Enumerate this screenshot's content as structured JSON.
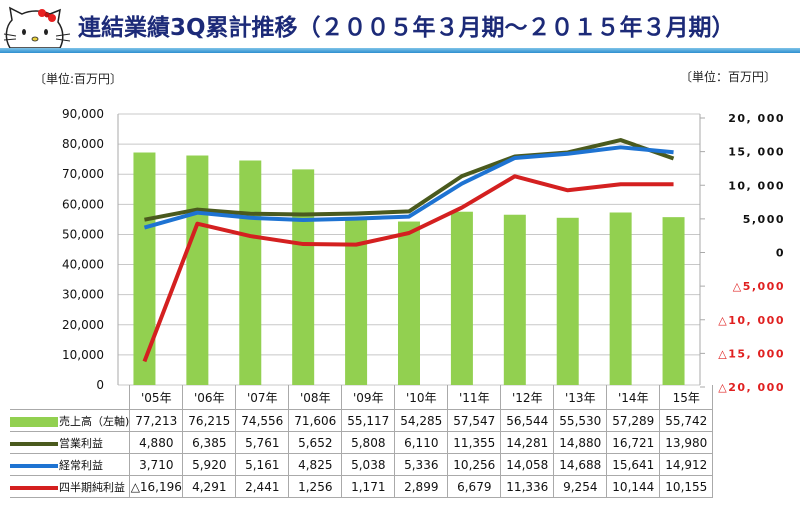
{
  "title": "連結業績3Q累計推移（２００５年３月期～２０１５年３月期）",
  "logo": "hello-kitty",
  "unit_left": "〔単位:百万円〕",
  "unit_right": "〔単位：百万円〕",
  "colors": {
    "title": "#1c2a78",
    "sales": "#92d050",
    "operating": "#4a5a1e",
    "ordinary": "#1e73d2",
    "net": "#d42020",
    "negative_tick": "#e02020"
  },
  "chart_data": {
    "type": "bar+line",
    "categories": [
      "'05年",
      "'06年",
      "'07年",
      "'08年",
      "'09年",
      "'10年",
      "'11年",
      "'12年",
      "'13年",
      "'14年",
      "15年"
    ],
    "left_axis": {
      "ylim": [
        0,
        90000
      ],
      "ticks": [
        "0",
        "10,000",
        "20,000",
        "30,000",
        "40,000",
        "50,000",
        "60,000",
        "70,000",
        "80,000",
        "90,000"
      ]
    },
    "right_axis": {
      "ylim": [
        -20000,
        20000
      ],
      "ticks": [
        "△20, 000",
        "△15, 000",
        "△10, 000",
        "△5,000",
        "0",
        "5,000",
        "10, 000",
        "15, 000",
        "20, 000"
      ]
    },
    "grid": true,
    "series": [
      {
        "name": "売上高（左軸)",
        "type": "bar",
        "axis": "left",
        "color": "#92d050",
        "values": [
          77213,
          76215,
          74556,
          71606,
          55117,
          54285,
          57547,
          56544,
          55530,
          57289,
          55742
        ],
        "labels": [
          "77,213",
          "76,215",
          "74,556",
          "71,606",
          "55,117",
          "54,285",
          "57,547",
          "56,544",
          "55,530",
          "57,289",
          "55,742"
        ]
      },
      {
        "name": "営業利益",
        "type": "line",
        "axis": "right",
        "color": "#4a5a1e",
        "values": [
          4880,
          6385,
          5761,
          5652,
          5808,
          6110,
          11355,
          14281,
          14880,
          16721,
          13980
        ],
        "labels": [
          "4,880",
          "6,385",
          "5,761",
          "5,652",
          "5,808",
          "6,110",
          "11,355",
          "14,281",
          "14,880",
          "16,721",
          "13,980"
        ]
      },
      {
        "name": "経常利益",
        "type": "line",
        "axis": "right",
        "color": "#1e73d2",
        "values": [
          3710,
          5920,
          5161,
          4825,
          5038,
          5336,
          10256,
          14058,
          14688,
          15641,
          14912
        ],
        "labels": [
          "3,710",
          "5,920",
          "5,161",
          "4,825",
          "5,038",
          "5,336",
          "10,256",
          "14,058",
          "14,688",
          "15,641",
          "14,912"
        ]
      },
      {
        "name": "四半期純利益",
        "type": "line",
        "axis": "right",
        "color": "#d42020",
        "values": [
          -16196,
          4291,
          2441,
          1256,
          1171,
          2899,
          6679,
          11336,
          9254,
          10144,
          10155
        ],
        "labels": [
          "△16,196",
          "4,291",
          "2,441",
          "1,256",
          "1,171",
          "2,899",
          "6,679",
          "11,336",
          "9,254",
          "10,144",
          "10,155"
        ]
      }
    ]
  }
}
